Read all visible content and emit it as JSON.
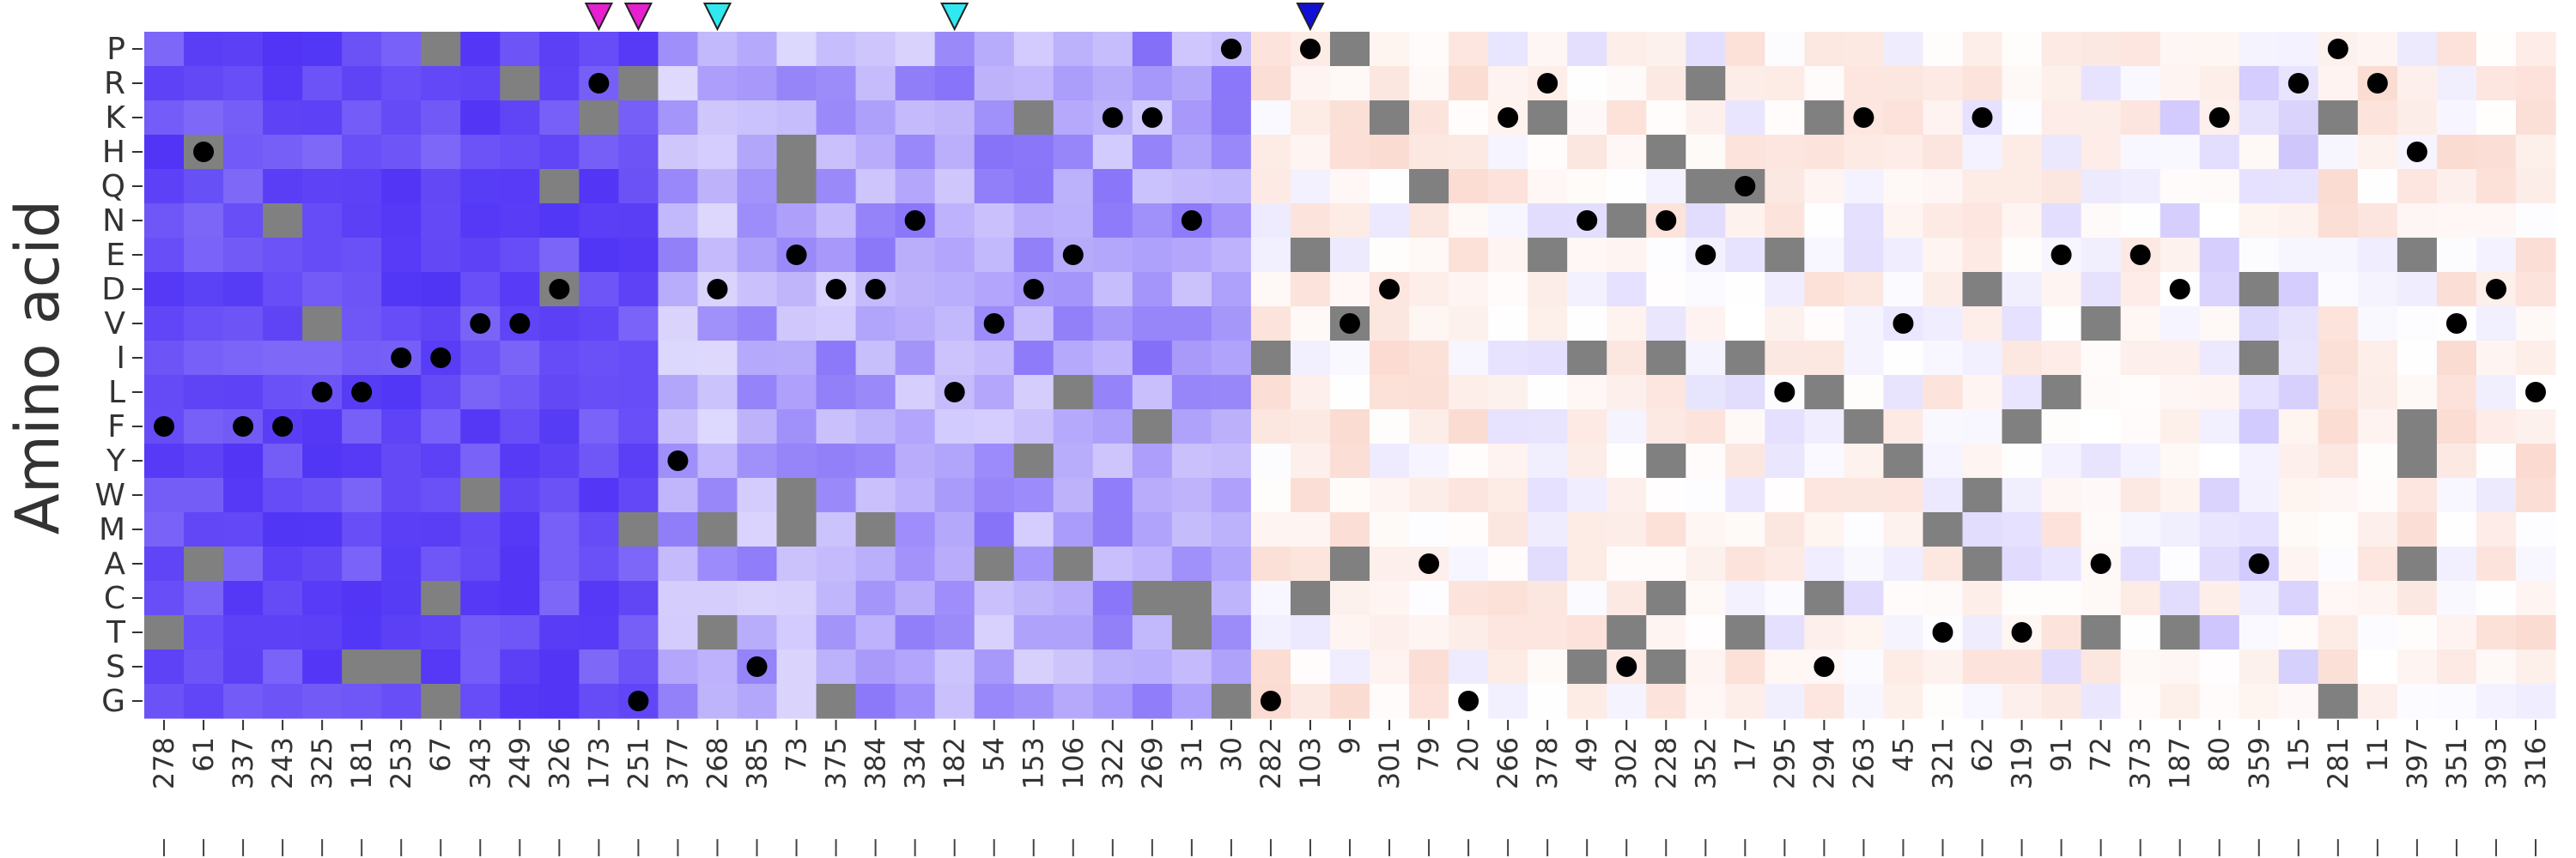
{
  "chart_data": {
    "type": "heatmap",
    "title": "",
    "xlabel": "",
    "ylabel": "Amino acid",
    "rows": [
      "P",
      "R",
      "K",
      "H",
      "Q",
      "N",
      "E",
      "D",
      "V",
      "I",
      "L",
      "F",
      "Y",
      "W",
      "M",
      "A",
      "C",
      "T",
      "S",
      "G"
    ],
    "columns": [
      "278",
      "61",
      "337",
      "243",
      "325",
      "181",
      "253",
      "67",
      "343",
      "249",
      "326",
      "173",
      "251",
      "377",
      "268",
      "385",
      "73",
      "375",
      "384",
      "334",
      "182",
      "54",
      "153",
      "106",
      "322",
      "269",
      "31",
      "30",
      "282",
      "103",
      "9",
      "301",
      "79",
      "20",
      "266",
      "378",
      "49",
      "302",
      "228",
      "352",
      "17",
      "295",
      "294",
      "263",
      "45",
      "321",
      "62",
      "319",
      "91",
      "72",
      "373",
      "187",
      "80",
      "359",
      "15",
      "281",
      "11",
      "397",
      "351",
      "393",
      "316"
    ],
    "color_scale": {
      "low": "#4a2cf5",
      "mid": "#ffffff",
      "high": "#f39679",
      "missing": "#808080"
    },
    "cell_values_note": "",
    "marker_colors": {
      "magenta": "#e61fd0",
      "cyan": "#2fe8f0",
      "blue": "#1010d8"
    },
    "top_markers": [
      {
        "column": "173",
        "color": "magenta"
      },
      {
        "column": "251",
        "color": "magenta"
      },
      {
        "column": "268",
        "color": "cyan"
      },
      {
        "column": "182",
        "color": "cyan"
      },
      {
        "column": "103",
        "color": "blue"
      }
    ],
    "dots": [
      {
        "column": "278",
        "row": "F"
      },
      {
        "column": "61",
        "row": "H"
      },
      {
        "column": "337",
        "row": "F"
      },
      {
        "column": "243",
        "row": "F"
      },
      {
        "column": "325",
        "row": "L"
      },
      {
        "column": "181",
        "row": "L"
      },
      {
        "column": "253",
        "row": "I"
      },
      {
        "column": "67",
        "row": "I"
      },
      {
        "column": "343",
        "row": "V"
      },
      {
        "column": "249",
        "row": "V"
      },
      {
        "column": "326",
        "row": "D"
      },
      {
        "column": "173",
        "row": "R"
      },
      {
        "column": "251",
        "row": "G"
      },
      {
        "column": "377",
        "row": "Y"
      },
      {
        "column": "268",
        "row": "D"
      },
      {
        "column": "385",
        "row": "S"
      },
      {
        "column": "73",
        "row": "E"
      },
      {
        "column": "375",
        "row": "D"
      },
      {
        "column": "384",
        "row": "D"
      },
      {
        "column": "334",
        "row": "N"
      },
      {
        "column": "182",
        "row": "L"
      },
      {
        "column": "54",
        "row": "V"
      },
      {
        "column": "153",
        "row": "D"
      },
      {
        "column": "106",
        "row": "E"
      },
      {
        "column": "322",
        "row": "K"
      },
      {
        "column": "269",
        "row": "K"
      },
      {
        "column": "31",
        "row": "N"
      },
      {
        "column": "30",
        "row": "P"
      },
      {
        "column": "282",
        "row": "G"
      },
      {
        "column": "103",
        "row": "P"
      },
      {
        "column": "9",
        "row": "V"
      },
      {
        "column": "301",
        "row": "D"
      },
      {
        "column": "79",
        "row": "A"
      },
      {
        "column": "20",
        "row": "G"
      },
      {
        "column": "266",
        "row": "K"
      },
      {
        "column": "378",
        "row": "R"
      },
      {
        "column": "49",
        "row": "N"
      },
      {
        "column": "302",
        "row": "S"
      },
      {
        "column": "228",
        "row": "N"
      },
      {
        "column": "352",
        "row": "E"
      },
      {
        "column": "17",
        "row": "Q"
      },
      {
        "column": "295",
        "row": "L"
      },
      {
        "column": "294",
        "row": "S"
      },
      {
        "column": "263",
        "row": "K"
      },
      {
        "column": "45",
        "row": "V"
      },
      {
        "column": "321",
        "row": "T"
      },
      {
        "column": "62",
        "row": "K"
      },
      {
        "column": "319",
        "row": "T"
      },
      {
        "column": "91",
        "row": "E"
      },
      {
        "column": "72",
        "row": "A"
      },
      {
        "column": "373",
        "row": "E"
      },
      {
        "column": "187",
        "row": "D"
      },
      {
        "column": "80",
        "row": "K"
      },
      {
        "column": "359",
        "row": "A"
      },
      {
        "column": "15",
        "row": "R"
      },
      {
        "column": "281",
        "row": "P"
      },
      {
        "column": "11",
        "row": "R"
      },
      {
        "column": "397",
        "row": "H"
      },
      {
        "column": "351",
        "row": "V"
      },
      {
        "column": "393",
        "row": "D"
      },
      {
        "column": "316",
        "row": "L"
      }
    ]
  }
}
